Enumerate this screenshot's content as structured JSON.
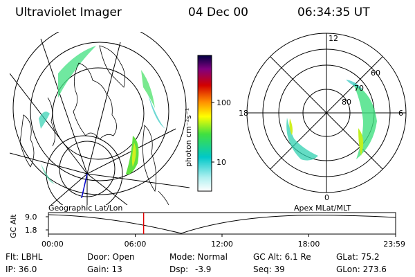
{
  "header": {
    "instrument": "Ultraviolet Imager",
    "date": "04 Dec 00",
    "time": "06:34:35 UT"
  },
  "colorbar": {
    "unit_label": "photon cm⁻²s⁻¹",
    "ticks": [
      "100",
      "10"
    ],
    "log_scale": true,
    "colors": [
      "#ffffff",
      "#00c8c8",
      "#40e040",
      "#ffff00",
      "#ff8c00",
      "#d20000",
      "#800080",
      "#000040"
    ]
  },
  "polar_plot": {
    "mlt_labels": [
      "12",
      "18",
      "6",
      "0"
    ],
    "mlat_labels": [
      "60",
      "70",
      "80"
    ]
  },
  "left_panel": {
    "label": "Geographic Lat/Lon"
  },
  "right_panel": {
    "label": "Apex MLat/MLT"
  },
  "orbit_plot": {
    "ylabel": "GC Alt",
    "y_ticks": [
      "9.0",
      "1.8"
    ],
    "x_ticks": [
      "00:00",
      "06:00",
      "12:00",
      "18:00",
      "23:59"
    ],
    "current_time_marker_hours": 6.58
  },
  "info": {
    "flt": "Flt: LBHL",
    "ip": "IP: 36.0",
    "door": "Door: Open",
    "gain": "Gain: 13",
    "mode": "Mode: Normal",
    "dsp_label": "Dsp:",
    "dsp_value": "-3.9",
    "gc_alt": "GC Alt: 6.1 Re",
    "seq": "Seq: 39",
    "glat": "GLat:  75.2",
    "glon": "GLon: 273.6"
  }
}
